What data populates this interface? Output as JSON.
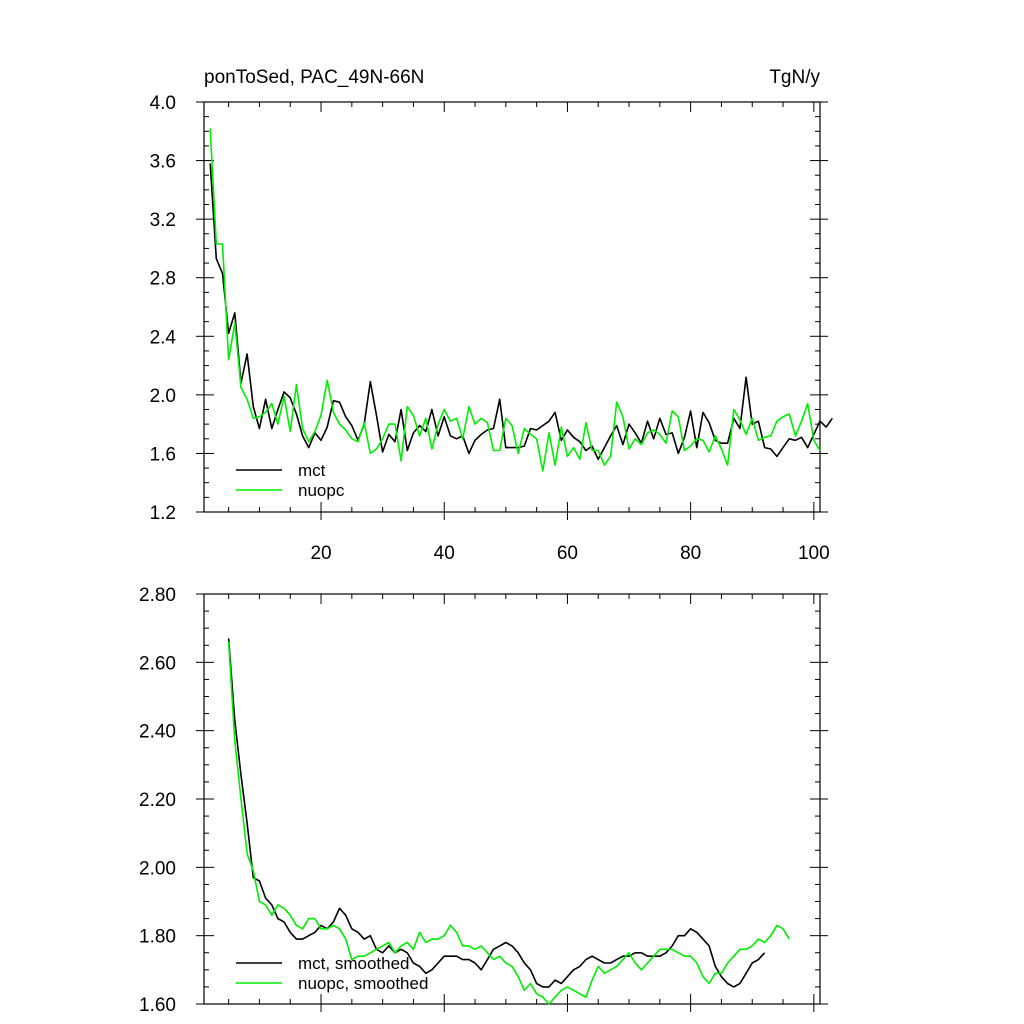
{
  "chart_data": [
    {
      "type": "line",
      "title": "ponToSed, PAC_49N-66N",
      "units": "TgN/y",
      "xlim": [
        1,
        101
      ],
      "ylim": [
        1.2,
        4.0
      ],
      "x_ticks": [
        20,
        40,
        60,
        80,
        100
      ],
      "x_tick_labels": [
        "20",
        "40",
        "60",
        "80",
        "100"
      ],
      "y_ticks": [
        1.2,
        1.6,
        2.0,
        2.4,
        2.8,
        3.2,
        3.6,
        4.0
      ],
      "y_tick_labels": [
        "1.2",
        "1.6",
        "2.0",
        "2.4",
        "2.8",
        "3.2",
        "3.6",
        "4.0"
      ],
      "legend_position": "bottom-left",
      "x_start": 2,
      "series": [
        {
          "name": "mct",
          "color": "#000000",
          "values": [
            3.58,
            2.93,
            2.83,
            2.42,
            2.56,
            2.08,
            2.28,
            1.92,
            1.77,
            1.97,
            1.77,
            1.9,
            2.02,
            1.98,
            1.87,
            1.72,
            1.64,
            1.74,
            1.69,
            1.78,
            1.96,
            1.95,
            1.85,
            1.79,
            1.69,
            1.8,
            2.09,
            1.86,
            1.61,
            1.73,
            1.68,
            1.9,
            1.62,
            1.74,
            1.79,
            1.75,
            1.9,
            1.72,
            1.85,
            1.72,
            1.7,
            1.72,
            1.6,
            1.69,
            1.73,
            1.76,
            1.77,
            1.97,
            1.64,
            1.64,
            1.64,
            1.65,
            1.77,
            1.76,
            1.79,
            1.82,
            1.88,
            1.69,
            1.76,
            1.71,
            1.68,
            1.62,
            1.65,
            1.56,
            1.64,
            1.72,
            1.79,
            1.66,
            1.8,
            1.74,
            1.67,
            1.82,
            1.7,
            1.84,
            1.73,
            1.74,
            1.6,
            1.71,
            1.89,
            1.64,
            1.88,
            1.81,
            1.69,
            1.67,
            1.67,
            1.84,
            1.77,
            2.12,
            1.8,
            1.82,
            1.64,
            1.63,
            1.58,
            1.64,
            1.7,
            1.69,
            1.71,
            1.64,
            1.73,
            1.82,
            1.78,
            1.84
          ]
        },
        {
          "name": "nuopc",
          "color": "#00ee00",
          "values": [
            3.82,
            3.03,
            3.03,
            2.24,
            2.49,
            2.05,
            1.97,
            1.84,
            1.85,
            1.88,
            1.94,
            1.8,
            1.99,
            1.75,
            2.07,
            1.77,
            1.68,
            1.75,
            1.86,
            2.1,
            1.88,
            1.8,
            1.76,
            1.7,
            1.68,
            1.81,
            1.6,
            1.63,
            1.7,
            1.8,
            1.8,
            1.55,
            1.92,
            1.86,
            1.72,
            1.84,
            1.63,
            1.8,
            1.9,
            1.82,
            1.84,
            1.7,
            1.92,
            1.8,
            1.84,
            1.81,
            1.62,
            1.62,
            1.84,
            1.79,
            1.6,
            1.77,
            1.73,
            1.7,
            1.48,
            1.74,
            1.52,
            1.78,
            1.58,
            1.64,
            1.56,
            1.81,
            1.62,
            1.62,
            1.52,
            1.58,
            1.95,
            1.85,
            1.63,
            1.7,
            1.66,
            1.74,
            1.76,
            1.73,
            1.67,
            1.89,
            1.85,
            1.62,
            1.65,
            1.7,
            1.69,
            1.61,
            1.72,
            1.63,
            1.52,
            1.9,
            1.83,
            1.73,
            1.84,
            1.69,
            1.71,
            1.72,
            1.82,
            1.85,
            1.87,
            1.72,
            1.82,
            1.94,
            1.69,
            1.62
          ]
        }
      ]
    },
    {
      "type": "line",
      "title": "",
      "xlim": [
        1,
        101
      ],
      "ylim": [
        1.6,
        2.8
      ],
      "x_ticks": [
        20,
        40,
        60,
        80,
        100
      ],
      "x_tick_labels": [],
      "y_ticks": [
        1.6,
        1.8,
        2.0,
        2.2,
        2.4,
        2.6,
        2.8
      ],
      "y_tick_labels": [
        "1.60",
        "1.80",
        "2.00",
        "2.20",
        "2.40",
        "2.60",
        "2.80"
      ],
      "legend_position": "bottom-left",
      "x_start": 5,
      "series": [
        {
          "name": "mct, smoothed",
          "color": "#000000",
          "values": [
            2.67,
            2.43,
            2.27,
            2.13,
            1.97,
            1.96,
            1.91,
            1.89,
            1.85,
            1.84,
            1.81,
            1.79,
            1.79,
            1.8,
            1.81,
            1.83,
            1.82,
            1.84,
            1.88,
            1.86,
            1.82,
            1.81,
            1.79,
            1.8,
            1.76,
            1.75,
            1.77,
            1.75,
            1.76,
            1.75,
            1.72,
            1.71,
            1.69,
            1.7,
            1.72,
            1.74,
            1.74,
            1.74,
            1.73,
            1.73,
            1.72,
            1.7,
            1.73,
            1.76,
            1.77,
            1.78,
            1.77,
            1.75,
            1.72,
            1.7,
            1.66,
            1.65,
            1.65,
            1.67,
            1.66,
            1.68,
            1.7,
            1.71,
            1.73,
            1.74,
            1.73,
            1.72,
            1.72,
            1.73,
            1.74,
            1.74,
            1.75,
            1.75,
            1.74,
            1.74,
            1.74,
            1.75,
            1.77,
            1.8,
            1.8,
            1.82,
            1.81,
            1.79,
            1.77,
            1.71,
            1.68,
            1.66,
            1.65,
            1.66,
            1.69,
            1.72,
            1.73,
            1.75
          ]
        },
        {
          "name": "nuopc, smoothed",
          "color": "#00ee00",
          "values": [
            2.66,
            2.37,
            2.2,
            2.04,
            1.99,
            1.9,
            1.89,
            1.86,
            1.89,
            1.88,
            1.86,
            1.83,
            1.82,
            1.85,
            1.85,
            1.82,
            1.82,
            1.83,
            1.82,
            1.79,
            1.73,
            1.74,
            1.74,
            1.75,
            1.76,
            1.77,
            1.78,
            1.75,
            1.77,
            1.78,
            1.76,
            1.81,
            1.78,
            1.79,
            1.79,
            1.8,
            1.83,
            1.81,
            1.77,
            1.77,
            1.76,
            1.77,
            1.75,
            1.73,
            1.74,
            1.72,
            1.71,
            1.68,
            1.64,
            1.66,
            1.63,
            1.62,
            1.6,
            1.62,
            1.64,
            1.65,
            1.64,
            1.63,
            1.62,
            1.67,
            1.71,
            1.69,
            1.7,
            1.71,
            1.73,
            1.75,
            1.72,
            1.7,
            1.72,
            1.74,
            1.76,
            1.76,
            1.76,
            1.75,
            1.74,
            1.74,
            1.72,
            1.68,
            1.66,
            1.69,
            1.69,
            1.72,
            1.74,
            1.76,
            1.76,
            1.77,
            1.79,
            1.78,
            1.8,
            1.83,
            1.82,
            1.79
          ]
        }
      ]
    }
  ]
}
